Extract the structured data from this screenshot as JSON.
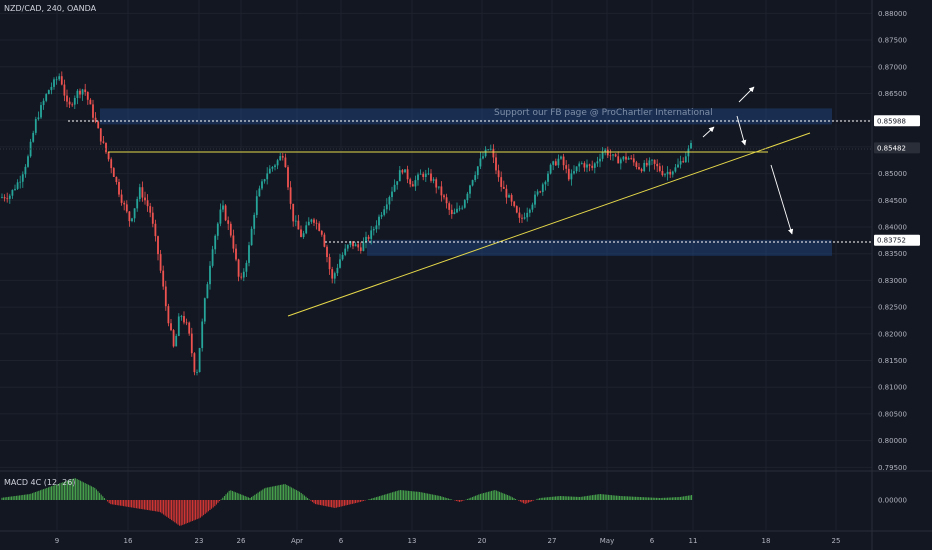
{
  "header": {
    "symbol_title": "NZD/CAD, 240, OANDA",
    "indicator_title": "MACD 4C (12, 26)"
  },
  "colors": {
    "background": "#131722",
    "grid": "#1e222d",
    "text": "#b2b5be",
    "bull": "#26a69a",
    "bear": "#ef5350",
    "hist_pos": "#4caf50",
    "hist_neg": "#e53935",
    "trend_line": "#e6d84a",
    "zone": "#1e4a8a",
    "white": "#ffffff"
  },
  "chart_data": {
    "type": "candlestick",
    "annotation_text": "Support our FB page @ ProChartler International",
    "x_ticks": [
      "9",
      "16",
      "23",
      "26",
      "Apr",
      "6",
      "13",
      "20",
      "27",
      "May",
      "6",
      "11",
      "18",
      "25"
    ],
    "y_ticks": [
      "0.88000",
      "0.87500",
      "0.87000",
      "0.86500",
      "0.86000",
      "0.85500",
      "0.85000",
      "0.84500",
      "0.84000",
      "0.83500",
      "0.83000",
      "0.82500",
      "0.82000",
      "0.81500",
      "0.81000",
      "0.80500",
      "0.80000",
      "0.79500"
    ],
    "ylim": [
      0.7945,
      0.8825
    ],
    "price_tags": [
      {
        "label": "0.85988",
        "value": 0.85988,
        "style": "dotted"
      },
      {
        "label": "0.85482",
        "value": 0.85482,
        "style": "current"
      },
      {
        "label": "0.83752",
        "value": 0.83752,
        "style": "dotted"
      }
    ],
    "macd_ticks": [
      "0.00000"
    ],
    "macd_ylim": [
      -0.003,
      0.0028
    ],
    "zones": [
      {
        "from_tick": 6,
        "to_tick": 18,
        "low": 0.8592,
        "high": 0.8622
      },
      {
        "from_tick": 39,
        "to_tick": 18,
        "low": 0.8346,
        "high": 0.8376
      }
    ]
  }
}
